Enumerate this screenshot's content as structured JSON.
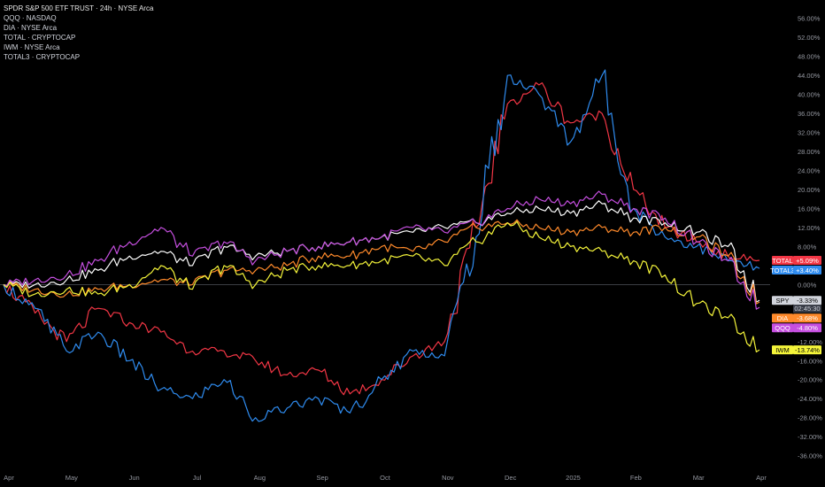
{
  "legend": {
    "main": "SPDR S&P 500 ETF TRUST · 24h · NYSE Arca",
    "items": [
      "QQQ · NASDAQ",
      "DIA · NYSE Arca",
      "TOTAL · CRYPTOCAP",
      "IWM · NYSE Arca",
      "TOTAL3 · CRYPTOCAP"
    ]
  },
  "chart_data": {
    "type": "line",
    "xlabel": "",
    "ylabel": "",
    "y_unit": "%",
    "ylim": [
      -37,
      58
    ],
    "grid": false,
    "legend_position": "top-left",
    "x_ticks": [
      "Apr",
      "May",
      "Jun",
      "Jul",
      "Aug",
      "Sep",
      "Oct",
      "Nov",
      "Dec",
      "2025",
      "Feb",
      "Mar",
      "Apr"
    ],
    "y_ticks": [
      "56.00%",
      "52.00%",
      "48.00%",
      "44.00%",
      "40.00%",
      "36.00%",
      "32.00%",
      "28.00%",
      "24.00%",
      "20.00%",
      "16.00%",
      "12.00%",
      "8.00%",
      "0.00%",
      "-12.00%",
      "-16.00%",
      "-20.00%",
      "-24.00%",
      "-28.00%",
      "-32.00%",
      "-36.00%"
    ],
    "x": [
      0,
      0.5,
      1,
      1.5,
      2,
      2.5,
      3,
      3.5,
      4,
      4.5,
      5,
      5.5,
      6,
      6.5,
      7,
      7.5,
      8,
      8.5,
      9,
      9.5,
      10,
      10.5,
      11,
      11.5,
      12
    ],
    "series": [
      {
        "name": "TOTAL",
        "color": "#f23645",
        "last_label": "+5.09%",
        "values": [
          0,
          -6,
          -12,
          -5,
          -8,
          -10,
          -14,
          -14,
          -16,
          -19,
          -18,
          -23,
          -20,
          -15,
          -12,
          12,
          38,
          42,
          34,
          36,
          20,
          12,
          9,
          6,
          5.09
        ]
      },
      {
        "name": "TOTAL3",
        "color": "#2f8cf0",
        "last_label": "+3.40%",
        "values": [
          0,
          -5,
          -14,
          -10,
          -16,
          -22,
          -24,
          -20,
          -28,
          -26,
          -24,
          -27,
          -20,
          -14,
          -15,
          10,
          44,
          40,
          30,
          44,
          16,
          10,
          8,
          5,
          3.4
        ]
      },
      {
        "name": "SPY",
        "color": "#ffffff",
        "last_label": "-3.33%",
        "values": [
          0,
          0,
          1,
          3,
          6,
          7,
          4,
          8,
          6,
          7,
          8,
          9,
          10,
          11,
          12,
          13,
          15,
          16,
          15,
          17,
          14,
          13,
          11,
          8,
          -3.33
        ]
      },
      {
        "name": "DIA",
        "color": "#ff8a2b",
        "last_label": "-3.68%",
        "values": [
          0,
          -1,
          -2,
          -1,
          0,
          1,
          0,
          3,
          3,
          4,
          6,
          6,
          8,
          7,
          9,
          12,
          13,
          12,
          11,
          12,
          11,
          12,
          10,
          6,
          -3.68
        ]
      },
      {
        "name": "QQQ",
        "color": "#c64fe0",
        "last_label": "-4.80%",
        "values": [
          0,
          1,
          2,
          5,
          9,
          12,
          6,
          9,
          5,
          7,
          8,
          9,
          10,
          12,
          11,
          13,
          16,
          18,
          17,
          19,
          16,
          14,
          9,
          5,
          -4.8
        ]
      },
      {
        "name": "IWM",
        "color": "#f5f53a",
        "last_label": "-13.74%",
        "values": [
          0,
          -2,
          -1,
          -2,
          0,
          4,
          -1,
          4,
          0,
          3,
          4,
          4,
          5,
          6,
          4,
          9,
          13,
          10,
          8,
          7,
          5,
          2,
          -4,
          -7,
          -13.74
        ]
      }
    ],
    "current_badge": {
      "series": "SPY",
      "time": "02:45:30"
    },
    "zero_line": 0
  }
}
